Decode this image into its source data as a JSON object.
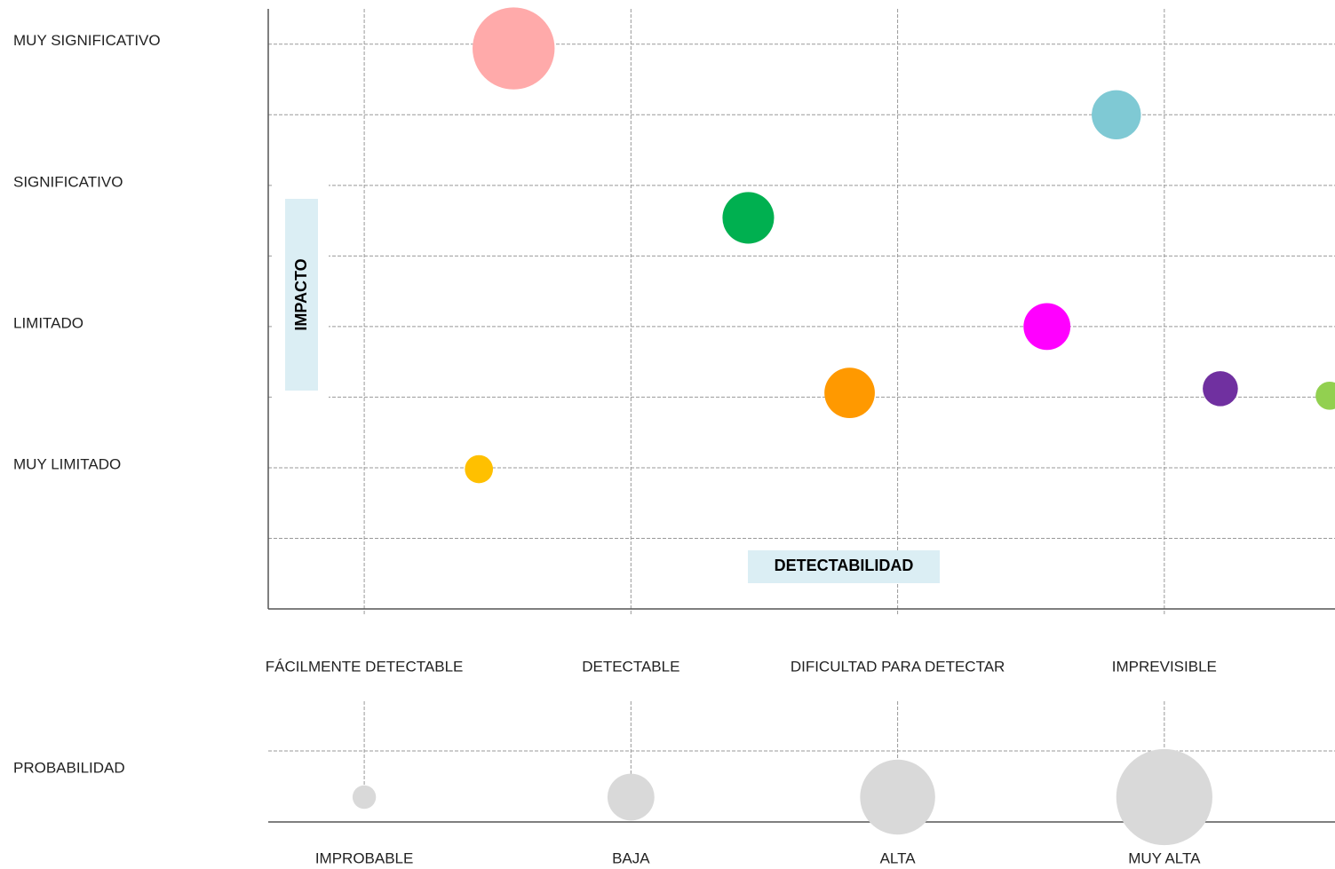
{
  "chart_data": {
    "type": "bubble",
    "x_label": "DETECTABILIDAD",
    "y_label": "IMPACTO",
    "xlim": [
      0.64,
      4.64
    ],
    "xticks": [
      {
        "value": 1,
        "label": "FÁCILMENTE DETECTABLE"
      },
      {
        "value": 2,
        "label": "DETECTABLE"
      },
      {
        "value": 3,
        "label": "DIFICULTAD PARA DETECTAR"
      },
      {
        "value": 4,
        "label": "IMPREVISIBLE"
      }
    ],
    "ylim": [
      0,
      4.25
    ],
    "yticks": [
      {
        "value": 4,
        "label": "MUY SIGNIFICATIVO"
      },
      {
        "value": 3,
        "label": "SIGNIFICATIVO"
      },
      {
        "value": 2,
        "label": "LIMITADO"
      },
      {
        "value": 1,
        "label": "MUY LIMITADO"
      }
    ],
    "ygrid": [
      0.5,
      1,
      1.5,
      2,
      2.5,
      3,
      3.5,
      4
    ],
    "grid": true,
    "points": {
      "x": [
        1.56,
        3.82,
        2.44,
        3.56,
        2.82,
        4.21,
        4.62,
        1.43
      ],
      "y": [
        3.97,
        3.5,
        2.77,
        2.0,
        1.53,
        1.56,
        1.51,
        0.99
      ],
      "size": [
        3.5,
        2.1,
        2.2,
        2.0,
        2.15,
        1.5,
        1.2,
        1.2
      ],
      "colors": [
        "#ffaaaa",
        "#7fc9d4",
        "#00b050",
        "#ff00ff",
        "#ff9900",
        "#7030a0",
        "#92d050",
        "#ffc000"
      ]
    },
    "size_legend": {
      "title": "PROBABILIDAD",
      "categories": [
        "IMPROBABLE",
        "BAJA",
        "ALTA",
        "MUY ALTA"
      ],
      "sizes": [
        1,
        2,
        3.2,
        4.1
      ],
      "color": "#d9d9d9"
    }
  }
}
